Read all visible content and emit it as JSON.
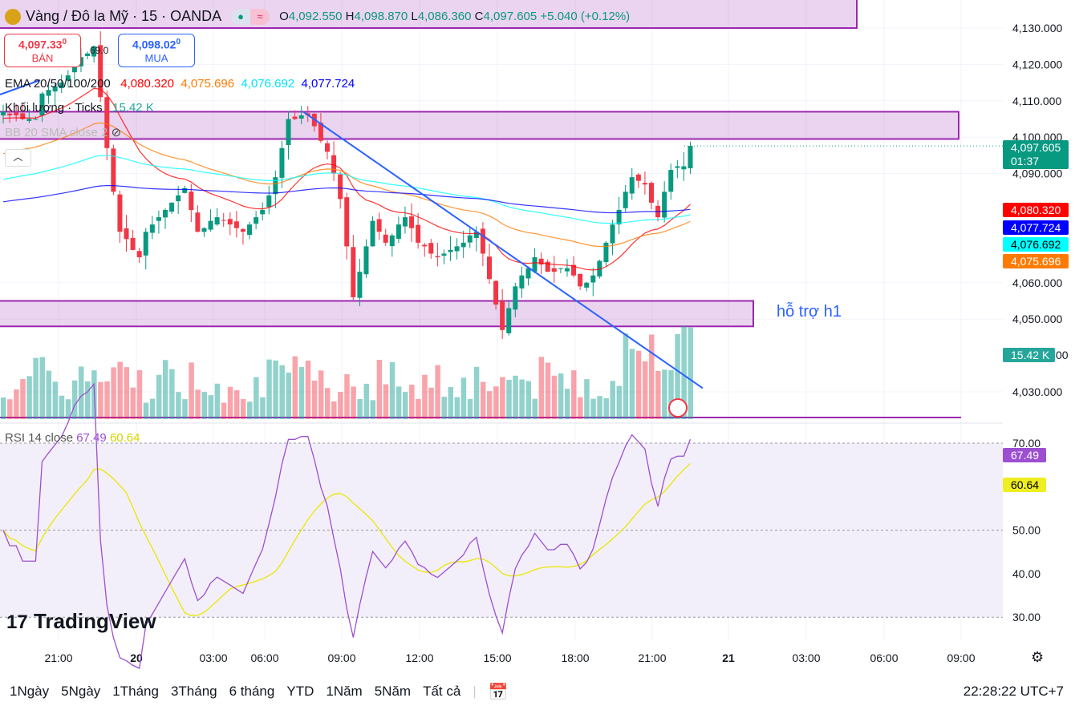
{
  "header": {
    "symbol": "Vàng / Đô la Mỹ · 15 · OANDA",
    "open_label": "O",
    "open": "4,092.550",
    "high_label": "H",
    "high": "4,098.870",
    "low_label": "L",
    "low": "4,086.360",
    "close_label": "C",
    "close": "4,097.605",
    "change": "+5.040 (+0.12%)"
  },
  "trade": {
    "sell_price": "4,097.33",
    "sell_sup": "0",
    "sell_label": "BÁN",
    "spread": "69.0",
    "buy_price": "4,098.02",
    "buy_sup": "0",
    "buy_label": "MUA"
  },
  "indicators": {
    "ema_label": "EMA 20/50/100/200",
    "ema20": "4,080.320",
    "ema50": "4,075.696",
    "ema100": "4,076.692",
    "ema200": "4,077.724",
    "volume_label": "Khối lượng · Ticks",
    "volume": "15.42 K",
    "bb_label": "BB 20 SMA close 2",
    "rsi_label": "RSI 14 close",
    "rsi": "67.49",
    "rsi_ma": "60.64"
  },
  "price_axis": {
    "ticks": [
      "4,130.000",
      "4,120.000",
      "4,110.000",
      "4,100.000",
      "4,090.000",
      "4,060.000",
      "4,050.000",
      "4,030.000"
    ],
    "last_price": "4,097.605",
    "countdown": "01:37",
    "ema20": "4,080.320",
    "ema200": "4,077.724",
    "ema100": "4,076.692",
    "ema50": "4,075.696",
    "volume": "15.42 K",
    "volume_tick_tail": "00"
  },
  "rsi_axis": {
    "ticks": [
      "70.00",
      "50.00",
      "40.00",
      "30.00"
    ],
    "rsi": "67.49",
    "rsi_ma": "60.64"
  },
  "time_axis": [
    "21:00",
    "20",
    "03:00",
    "06:00",
    "09:00",
    "12:00",
    "15:00",
    "18:00",
    "21:00",
    "21",
    "03:00",
    "06:00",
    "09:00"
  ],
  "annotation": "hỗ trợ h1",
  "logo": "TradingView",
  "ranges": [
    "1Ngày",
    "5Ngày",
    "1Tháng",
    "3Tháng",
    "6 tháng",
    "YTD",
    "1Năm",
    "5Năm",
    "Tất cả"
  ],
  "clock": "22:28:22 UTC+7",
  "colors": {
    "up": "#089981",
    "down": "#f23645",
    "ema20": "#ff0000",
    "ema50": "#ff7b00",
    "ema100": "#00ffff",
    "ema200": "#0000ff",
    "zone": "#9c27b0",
    "rsi": "#9c4fd0",
    "rsi_ma": "#e8e800"
  },
  "chart_data": {
    "type": "candlestick",
    "interval": "15",
    "ylim": [
      4025,
      4135
    ],
    "closes": [
      4107,
      4106,
      4106,
      4105,
      4105,
      4105,
      4112,
      4113,
      4114,
      4115,
      4117,
      4120,
      4122,
      4123,
      4125,
      4111,
      4097,
      4085,
      4074,
      4072,
      4069,
      4067,
      4074,
      4076,
      4078,
      4080,
      4082,
      4084,
      4086,
      4080,
      4074,
      4075,
      4077,
      4078,
      4077,
      4076,
      4075,
      4074,
      4076,
      4078,
      4080,
      4084,
      4089,
      4097,
      4105,
      4105,
      4106,
      4106,
      4103,
      4099,
      4096,
      4090,
      4083,
      4070,
      4056,
      4063,
      4070,
      4077,
      4074,
      4071,
      4073,
      4076,
      4078,
      4075,
      4071,
      4070,
      4068,
      4067,
      4068,
      4069,
      4070,
      4071,
      4073,
      4074,
      4068,
      4061,
      4054,
      4047,
      4053,
      4059,
      4062,
      4064,
      4067,
      4065,
      4063,
      4063,
      4064,
      4064,
      4062,
      4059,
      4060,
      4062,
      4066,
      4071,
      4076,
      4080,
      4085,
      4089,
      4088,
      4087,
      4082,
      4078,
      4085,
      4091,
      4092,
      4092,
      4097.6
    ],
    "zones": [
      [
        4130,
        4141
      ],
      [
        4099.5,
        4107
      ],
      [
        4048,
        4055
      ]
    ],
    "trendline": [
      [
        4107,
        47
      ],
      [
        4031,
        108
      ]
    ]
  }
}
